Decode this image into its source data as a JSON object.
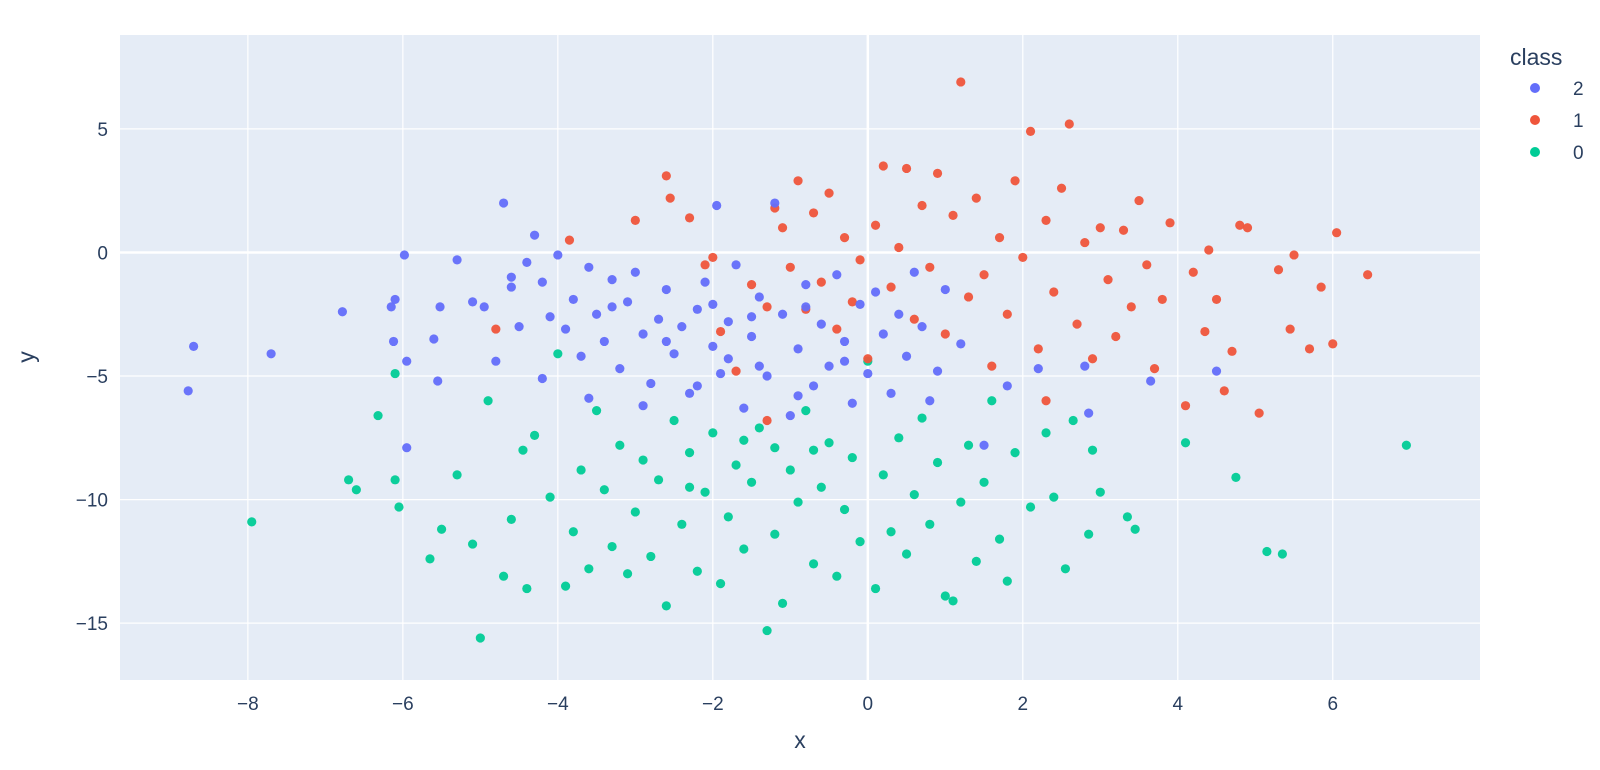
{
  "chart_data": {
    "type": "scatter",
    "xlabel": "x",
    "ylabel": "y",
    "xlim": [
      -9.65,
      7.9
    ],
    "ylim": [
      -17.3,
      8.8
    ],
    "x_ticks": [
      -8,
      -6,
      -4,
      -2,
      0,
      2,
      4,
      6
    ],
    "y_ticks": [
      -15,
      -10,
      -5,
      0,
      5
    ],
    "grid": true,
    "legend": {
      "title": "class",
      "placement": "top-right"
    },
    "series": [
      {
        "name": "2",
        "color": "#636efa",
        "points": [
          [
            -8.77,
            -5.6
          ],
          [
            -8.7,
            -3.8
          ],
          [
            -7.7,
            -4.1
          ],
          [
            -6.78,
            -2.4
          ],
          [
            -6.15,
            -2.2
          ],
          [
            -6.1,
            -1.9
          ],
          [
            -6.12,
            -3.6
          ],
          [
            -5.98,
            -0.1
          ],
          [
            -5.95,
            -4.4
          ],
          [
            -5.95,
            -7.9
          ],
          [
            -5.52,
            -2.2
          ],
          [
            -5.55,
            -5.2
          ],
          [
            -5.6,
            -3.5
          ],
          [
            -5.3,
            -0.3
          ],
          [
            -5.1,
            -2.0
          ],
          [
            -4.95,
            -2.2
          ],
          [
            -4.8,
            -4.4
          ],
          [
            -4.7,
            2.0
          ],
          [
            -4.6,
            -1.4
          ],
          [
            -4.5,
            -3.0
          ],
          [
            -4.4,
            -0.4
          ],
          [
            -4.3,
            0.7
          ],
          [
            -4.2,
            -1.2
          ],
          [
            -4.1,
            -2.6
          ],
          [
            -4.0,
            -0.1
          ],
          [
            -3.9,
            -3.1
          ],
          [
            -3.8,
            -1.9
          ],
          [
            -3.7,
            -4.2
          ],
          [
            -3.6,
            -0.6
          ],
          [
            -3.5,
            -2.5
          ],
          [
            -3.4,
            -3.6
          ],
          [
            -3.3,
            -1.1
          ],
          [
            -3.2,
            -4.7
          ],
          [
            -3.1,
            -2.0
          ],
          [
            -3.0,
            -0.8
          ],
          [
            -2.9,
            -3.3
          ],
          [
            -2.8,
            -5.3
          ],
          [
            -2.7,
            -2.7
          ],
          [
            -2.6,
            -1.5
          ],
          [
            -2.5,
            -4.1
          ],
          [
            -2.4,
            -3.0
          ],
          [
            -2.3,
            -5.7
          ],
          [
            -2.2,
            -2.3
          ],
          [
            -2.1,
            -1.2
          ],
          [
            -2.0,
            -3.8
          ],
          [
            -1.95,
            1.9
          ],
          [
            -1.9,
            -4.9
          ],
          [
            -1.8,
            -2.8
          ],
          [
            -1.7,
            -0.5
          ],
          [
            -1.6,
            -6.3
          ],
          [
            -1.5,
            -3.4
          ],
          [
            -1.4,
            -1.8
          ],
          [
            -1.3,
            -5.0
          ],
          [
            -1.2,
            2.0
          ],
          [
            -1.1,
            -2.5
          ],
          [
            -1.0,
            -6.6
          ],
          [
            -0.9,
            -3.9
          ],
          [
            -0.8,
            -1.3
          ],
          [
            -0.7,
            -5.4
          ],
          [
            -0.6,
            -2.9
          ],
          [
            -0.5,
            -4.6
          ],
          [
            -0.4,
            -0.9
          ],
          [
            -0.3,
            -3.6
          ],
          [
            -0.2,
            -6.1
          ],
          [
            -0.1,
            -2.1
          ],
          [
            0.0,
            -4.9
          ],
          [
            0.1,
            -1.6
          ],
          [
            0.2,
            -3.3
          ],
          [
            0.3,
            -5.7
          ],
          [
            0.4,
            -2.5
          ],
          [
            0.5,
            -4.2
          ],
          [
            0.6,
            -0.8
          ],
          [
            0.7,
            -3.0
          ],
          [
            0.8,
            -6.0
          ],
          [
            0.9,
            -4.8
          ],
          [
            1.0,
            -1.5
          ],
          [
            1.2,
            -3.7
          ],
          [
            1.5,
            -7.8
          ],
          [
            1.8,
            -5.4
          ],
          [
            2.2,
            -4.7
          ],
          [
            2.8,
            -4.6
          ],
          [
            2.85,
            -6.5
          ],
          [
            3.65,
            -5.2
          ],
          [
            4.5,
            -4.8
          ],
          [
            -4.2,
            -5.1
          ],
          [
            -3.6,
            -5.9
          ],
          [
            -2.9,
            -6.2
          ],
          [
            -2.2,
            -5.4
          ],
          [
            -1.8,
            -4.3
          ],
          [
            -1.4,
            -4.6
          ],
          [
            -0.9,
            -5.8
          ],
          [
            -3.3,
            -2.2
          ],
          [
            -2.6,
            -3.6
          ],
          [
            -2.0,
            -2.1
          ],
          [
            -1.5,
            -2.6
          ],
          [
            -0.8,
            -2.2
          ],
          [
            -0.3,
            -4.4
          ],
          [
            -4.6,
            -1.0
          ]
        ]
      },
      {
        "name": "1",
        "color": "#ef553b",
        "points": [
          [
            -4.8,
            -3.1
          ],
          [
            -3.85,
            0.5
          ],
          [
            -3.0,
            1.3
          ],
          [
            -2.55,
            2.2
          ],
          [
            -2.6,
            3.1
          ],
          [
            -2.3,
            1.4
          ],
          [
            -2.1,
            -0.5
          ],
          [
            -2.0,
            -0.2
          ],
          [
            -1.9,
            -3.2
          ],
          [
            -1.7,
            -4.8
          ],
          [
            -1.5,
            -1.3
          ],
          [
            -1.3,
            -2.2
          ],
          [
            -1.1,
            1.0
          ],
          [
            -1.0,
            -0.6
          ],
          [
            -0.9,
            2.9
          ],
          [
            -0.8,
            -2.3
          ],
          [
            -0.7,
            1.6
          ],
          [
            -0.6,
            -1.2
          ],
          [
            -0.5,
            2.4
          ],
          [
            -0.4,
            -3.1
          ],
          [
            -0.3,
            0.6
          ],
          [
            -0.2,
            -2.0
          ],
          [
            -0.1,
            -0.3
          ],
          [
            0.0,
            -4.3
          ],
          [
            0.1,
            1.1
          ],
          [
            0.2,
            3.5
          ],
          [
            0.3,
            -1.4
          ],
          [
            0.4,
            0.2
          ],
          [
            0.5,
            3.4
          ],
          [
            0.6,
            -2.7
          ],
          [
            0.7,
            1.9
          ],
          [
            0.8,
            -0.6
          ],
          [
            0.9,
            3.2
          ],
          [
            1.0,
            -3.3
          ],
          [
            1.1,
            1.5
          ],
          [
            1.2,
            6.9
          ],
          [
            1.3,
            -1.8
          ],
          [
            1.4,
            2.2
          ],
          [
            1.5,
            -0.9
          ],
          [
            1.6,
            -4.6
          ],
          [
            1.7,
            0.6
          ],
          [
            1.8,
            -2.5
          ],
          [
            1.9,
            2.9
          ],
          [
            2.0,
            -0.2
          ],
          [
            2.1,
            4.9
          ],
          [
            2.2,
            -3.9
          ],
          [
            2.3,
            1.3
          ],
          [
            2.4,
            -1.6
          ],
          [
            2.5,
            2.6
          ],
          [
            2.6,
            5.2
          ],
          [
            2.7,
            -2.9
          ],
          [
            2.8,
            0.4
          ],
          [
            2.9,
            -4.3
          ],
          [
            3.0,
            1.0
          ],
          [
            3.1,
            -1.1
          ],
          [
            3.2,
            -3.4
          ],
          [
            3.3,
            0.9
          ],
          [
            3.4,
            -2.2
          ],
          [
            3.5,
            2.1
          ],
          [
            3.6,
            -0.5
          ],
          [
            3.7,
            -4.7
          ],
          [
            3.8,
            -1.9
          ],
          [
            3.9,
            1.2
          ],
          [
            4.1,
            -6.2
          ],
          [
            4.2,
            -0.8
          ],
          [
            4.35,
            -3.2
          ],
          [
            4.4,
            0.1
          ],
          [
            4.5,
            -1.9
          ],
          [
            4.6,
            -5.6
          ],
          [
            4.7,
            -4.0
          ],
          [
            4.8,
            1.1
          ],
          [
            4.9,
            1.0
          ],
          [
            5.05,
            -6.5
          ],
          [
            5.3,
            -0.7
          ],
          [
            5.45,
            -3.1
          ],
          [
            5.5,
            -0.1
          ],
          [
            5.7,
            -3.9
          ],
          [
            5.85,
            -1.4
          ],
          [
            6.0,
            -3.7
          ],
          [
            6.05,
            0.8
          ],
          [
            6.45,
            -0.9
          ],
          [
            -1.3,
            -6.8
          ],
          [
            -1.2,
            1.8
          ],
          [
            2.3,
            -6.0
          ]
        ]
      },
      {
        "name": "0",
        "color": "#00cc96",
        "points": [
          [
            -7.95,
            -10.9
          ],
          [
            -6.7,
            -9.2
          ],
          [
            -6.6,
            -9.6
          ],
          [
            -6.32,
            -6.6
          ],
          [
            -6.1,
            -9.2
          ],
          [
            -6.05,
            -10.3
          ],
          [
            -6.1,
            -4.9
          ],
          [
            -5.65,
            -12.4
          ],
          [
            -5.5,
            -11.2
          ],
          [
            -5.3,
            -9.0
          ],
          [
            -5.1,
            -11.8
          ],
          [
            -5.0,
            -15.6
          ],
          [
            -4.9,
            -6.0
          ],
          [
            -4.7,
            -13.1
          ],
          [
            -4.6,
            -10.8
          ],
          [
            -4.45,
            -8.0
          ],
          [
            -4.4,
            -13.6
          ],
          [
            -4.3,
            -7.4
          ],
          [
            -4.1,
            -9.9
          ],
          [
            -4.0,
            -4.1
          ],
          [
            -3.9,
            -13.5
          ],
          [
            -3.8,
            -11.3
          ],
          [
            -3.7,
            -8.8
          ],
          [
            -3.6,
            -12.8
          ],
          [
            -3.5,
            -6.4
          ],
          [
            -3.4,
            -9.6
          ],
          [
            -3.3,
            -11.9
          ],
          [
            -3.2,
            -7.8
          ],
          [
            -3.1,
            -13.0
          ],
          [
            -3.0,
            -10.5
          ],
          [
            -2.9,
            -8.4
          ],
          [
            -2.8,
            -12.3
          ],
          [
            -2.7,
            -9.2
          ],
          [
            -2.6,
            -14.3
          ],
          [
            -2.5,
            -6.8
          ],
          [
            -2.4,
            -11.0
          ],
          [
            -2.3,
            -8.1
          ],
          [
            -2.2,
            -12.9
          ],
          [
            -2.1,
            -9.7
          ],
          [
            -2.0,
            -7.3
          ],
          [
            -1.9,
            -13.4
          ],
          [
            -1.8,
            -10.7
          ],
          [
            -1.7,
            -8.6
          ],
          [
            -1.6,
            -12.0
          ],
          [
            -1.5,
            -9.3
          ],
          [
            -1.4,
            -7.1
          ],
          [
            -1.3,
            -15.3
          ],
          [
            -1.2,
            -11.4
          ],
          [
            -1.1,
            -14.2
          ],
          [
            -1.0,
            -8.8
          ],
          [
            -0.9,
            -10.1
          ],
          [
            -0.8,
            -6.4
          ],
          [
            -0.7,
            -12.6
          ],
          [
            -0.6,
            -9.5
          ],
          [
            -0.5,
            -7.7
          ],
          [
            -0.4,
            -13.1
          ],
          [
            -0.3,
            -10.4
          ],
          [
            -0.2,
            -8.3
          ],
          [
            -0.1,
            -11.7
          ],
          [
            0.0,
            -4.4
          ],
          [
            0.1,
            -13.6
          ],
          [
            0.2,
            -9.0
          ],
          [
            0.3,
            -11.3
          ],
          [
            0.4,
            -7.5
          ],
          [
            0.5,
            -12.2
          ],
          [
            0.6,
            -9.8
          ],
          [
            0.7,
            -6.7
          ],
          [
            0.8,
            -11.0
          ],
          [
            0.9,
            -8.5
          ],
          [
            1.0,
            -13.9
          ],
          [
            1.1,
            -14.1
          ],
          [
            1.2,
            -10.1
          ],
          [
            1.3,
            -7.8
          ],
          [
            1.4,
            -12.5
          ],
          [
            1.5,
            -9.3
          ],
          [
            1.6,
            -6.0
          ],
          [
            1.7,
            -11.6
          ],
          [
            1.8,
            -13.3
          ],
          [
            1.9,
            -8.1
          ],
          [
            2.1,
            -10.3
          ],
          [
            2.3,
            -7.3
          ],
          [
            2.4,
            -9.9
          ],
          [
            2.55,
            -12.8
          ],
          [
            2.65,
            -6.8
          ],
          [
            2.85,
            -11.4
          ],
          [
            2.9,
            -8.0
          ],
          [
            3.0,
            -9.7
          ],
          [
            3.35,
            -10.7
          ],
          [
            3.45,
            -11.2
          ],
          [
            4.1,
            -7.7
          ],
          [
            4.75,
            -9.1
          ],
          [
            5.15,
            -12.1
          ],
          [
            5.35,
            -12.2
          ],
          [
            6.95,
            -7.8
          ],
          [
            -1.6,
            -7.6
          ],
          [
            -1.2,
            -7.9
          ],
          [
            -0.7,
            -8.0
          ],
          [
            -2.3,
            -9.5
          ]
        ]
      }
    ]
  }
}
